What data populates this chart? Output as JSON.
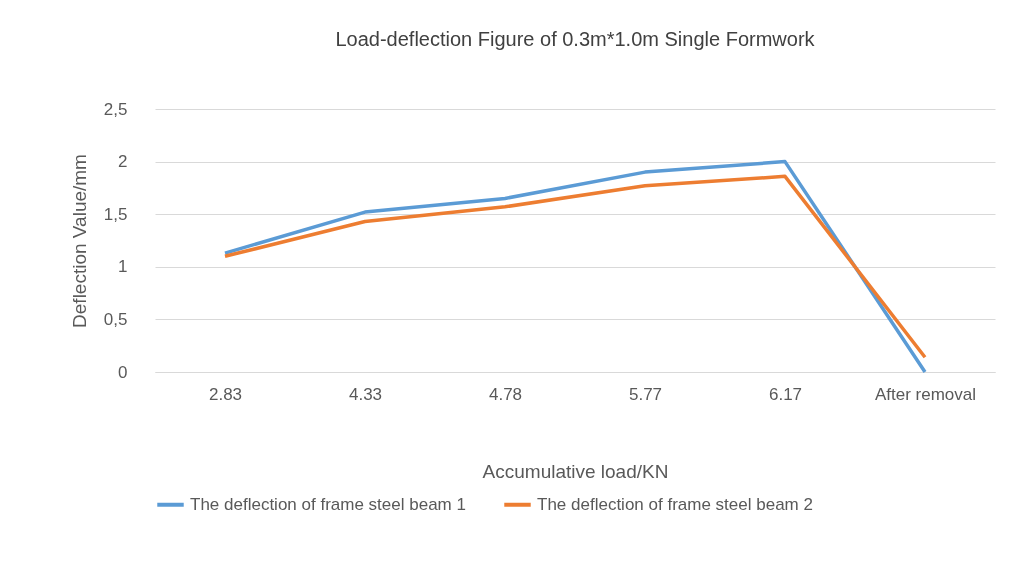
{
  "chart_data": {
    "type": "line",
    "title": "Load-deflection Figure of 0.3m*1.0m Single Formwork",
    "xlabel": "Accumulative load/KN",
    "ylabel": "Deflection Value/mm",
    "categories": [
      "2.83",
      "4.33",
      "4.78",
      "5.77",
      "6.17",
      "After removal"
    ],
    "series": [
      {
        "name": "The deflection of frame steel beam 1",
        "color": "#5b9bd5",
        "values": [
          1.13,
          1.52,
          1.65,
          1.9,
          2.0,
          0
        ]
      },
      {
        "name": "The deflection of frame steel beam 2",
        "color": "#ed7d31",
        "values": [
          1.1,
          1.43,
          1.57,
          1.77,
          1.86,
          0.14
        ]
      }
    ],
    "ylim": [
      0,
      2.5
    ],
    "yticks": [
      0,
      {
        "value": 0.5,
        "label": "0,5"
      },
      1,
      {
        "value": 1.5,
        "label": "1,5"
      },
      2,
      {
        "value": 2.5,
        "label": "2,5"
      }
    ],
    "grid": "y",
    "legend": "bottom",
    "marker": "none",
    "line_style": "solid"
  }
}
